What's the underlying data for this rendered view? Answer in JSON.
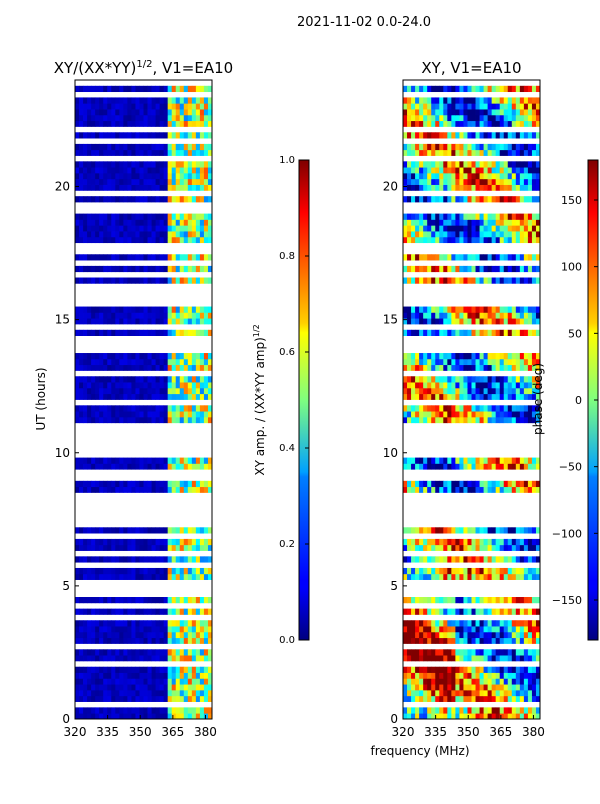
{
  "suptitle": "2021-11-02 0.0-24.0",
  "common_xlabel": "frequency (MHz)",
  "chart_data": [
    {
      "type": "heatmap",
      "title_main": "XY/(XX*YY)",
      "title_sup": "1/2",
      "title_rest": ", V1=EA10",
      "xlabel": "",
      "ylabel": "UT (hours)",
      "xlim": [
        320,
        383
      ],
      "ylim": [
        0,
        24
      ],
      "xticks": [
        320,
        335,
        350,
        365,
        380
      ],
      "yticks": [
        0,
        5,
        10,
        15,
        20
      ],
      "colorbar": {
        "label_main": "XY amp. / (XX*YY amp)",
        "label_sup": "1/2",
        "range": [
          0.0,
          1.0
        ],
        "ticks": [
          "0.0",
          "0.2",
          "0.4",
          "0.6",
          "0.8",
          "1.0"
        ],
        "colormap": "jet"
      },
      "description_values": {
        "low_band_320_362_MHz": 0.05,
        "high_band_362_383_MHz": 0.5
      }
    },
    {
      "type": "heatmap",
      "title_main": "XY, V1=EA10",
      "xlabel": "",
      "ylabel": "",
      "xlim": [
        320,
        383
      ],
      "ylim": [
        0,
        24
      ],
      "xticks": [
        320,
        335,
        350,
        365,
        380
      ],
      "yticks": [
        0,
        5,
        10,
        15,
        20
      ],
      "colorbar": {
        "label_main": "phase (deg)",
        "range": [
          -180,
          180
        ],
        "ticks": [
          "−150",
          "−100",
          "−50",
          "0",
          "50",
          "100",
          "150"
        ],
        "tick_values": [
          -150,
          -100,
          -50,
          0,
          50,
          100,
          150
        ],
        "colormap": "jet"
      }
    }
  ],
  "colors": {
    "jet_low": "#00007f",
    "jet_mid": "#7fff7f",
    "jet_high": "#7f0000"
  }
}
